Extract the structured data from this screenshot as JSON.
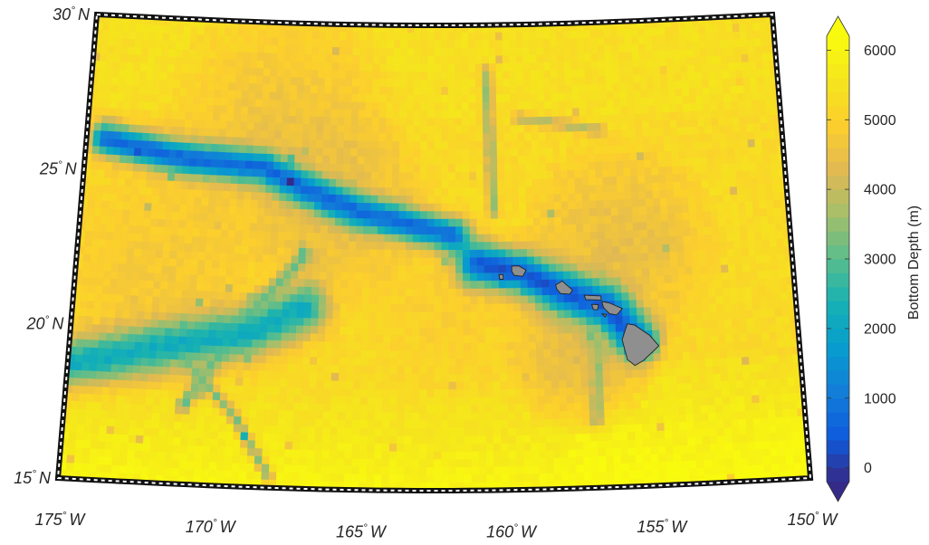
{
  "map": {
    "region": "Hawaiian Islands / Northwestern Hawaiian Ridge",
    "lat_range": [
      15,
      30
    ],
    "lon_range": [
      -175,
      -150
    ],
    "lat_labels": [
      {
        "value": 30,
        "deg": "30",
        "hemi": "N"
      },
      {
        "value": 25,
        "deg": "25",
        "hemi": "N"
      },
      {
        "value": 20,
        "deg": "20",
        "hemi": "N"
      },
      {
        "value": 15,
        "deg": "15",
        "hemi": "N"
      }
    ],
    "lon_labels": [
      {
        "value": -175,
        "deg": "175",
        "hemi": "W"
      },
      {
        "value": -170,
        "deg": "170",
        "hemi": "W"
      },
      {
        "value": -165,
        "deg": "165",
        "hemi": "W"
      },
      {
        "value": -160,
        "deg": "160",
        "hemi": "W"
      },
      {
        "value": -155,
        "deg": "155",
        "hemi": "W"
      },
      {
        "value": -150,
        "deg": "150",
        "hemi": "W"
      }
    ],
    "land_color": "#8f8f8f",
    "frame_colors": [
      "#000000",
      "#ffffff"
    ]
  },
  "colorbar": {
    "label": "Bottom Depth (m)",
    "ticks": [
      0,
      1000,
      2000,
      3000,
      4000,
      5000,
      6000
    ],
    "tick_labels": [
      "0",
      "1000",
      "2000",
      "3000",
      "4000",
      "5000",
      "6000"
    ],
    "range": [
      -200,
      6200
    ],
    "colormap": "parula",
    "extend": "both"
  }
}
